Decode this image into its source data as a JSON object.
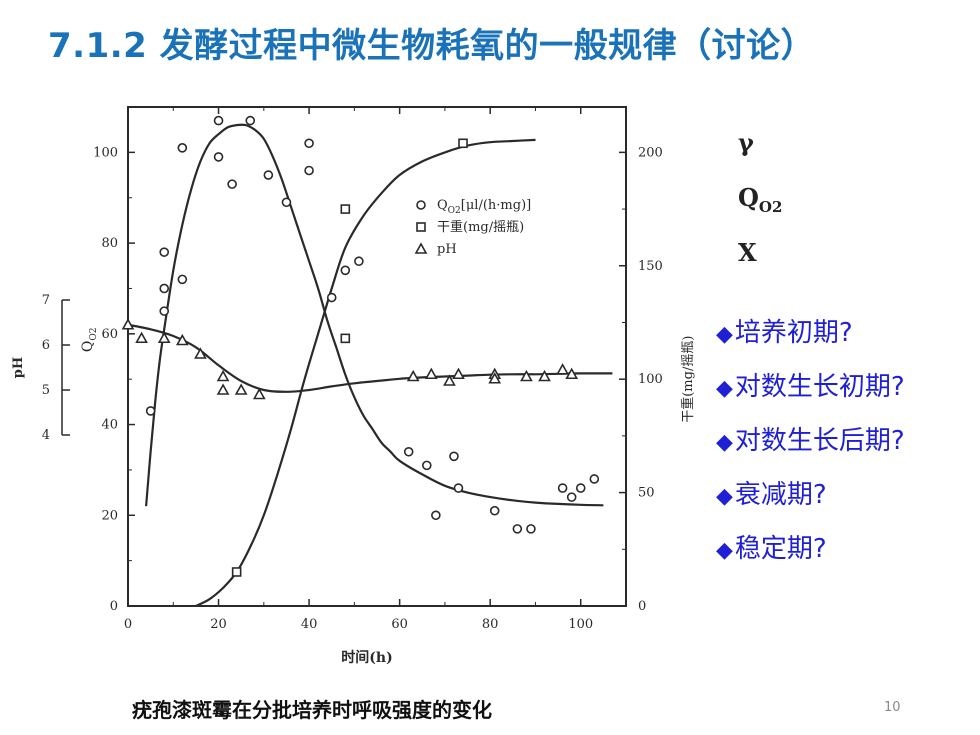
{
  "slide": {
    "title": "7.1.2 发酵过程中微生物耗氧的一般规律（讨论）",
    "caption": "疣孢漆斑霉在分批培养时呼吸强度的变化",
    "page_number": "10",
    "variables": [
      {
        "main": "γ",
        "sub": ""
      },
      {
        "main": "Q",
        "sub": "O2"
      },
      {
        "main": "X",
        "sub": ""
      }
    ],
    "phases": [
      "培养初期?",
      "对数生长初期?",
      "对数生长后期?",
      "衰减期?",
      "稳定期?"
    ],
    "phase_marker": "◆",
    "colors": {
      "title": "#1a72b8",
      "phases": "#1f1fd6",
      "ink": "#2a2a2a"
    }
  },
  "chart_data": {
    "type": "scatter",
    "xlabel": "时间(h)",
    "xlim": [
      0,
      110
    ],
    "x_ticks": [
      0,
      20,
      40,
      60,
      80,
      100
    ],
    "ylabel_left": "Q",
    "ylabel_left_sub": "O2",
    "ylim_left": [
      0,
      110
    ],
    "y_ticks_left": [
      0,
      20,
      40,
      60,
      80,
      100
    ],
    "ylabel_ph": "pH",
    "ylim_ph": [
      4,
      7
    ],
    "y_ticks_ph": [
      4,
      5,
      6,
      7
    ],
    "ylabel_right": "干重(mg/摇瓶)",
    "ylim_right": [
      0,
      220
    ],
    "y_ticks_right": [
      0,
      50,
      100,
      150,
      200
    ],
    "legend": {
      "position": "top-center",
      "entries": [
        {
          "marker": "circle",
          "label": "Q",
          "label_sub": "O2",
          "label_rest": "[μl/(h·mg)]"
        },
        {
          "marker": "square",
          "label": "干重(mg/摇瓶)"
        },
        {
          "marker": "triangle",
          "label": "pH"
        }
      ]
    },
    "grid": false,
    "series": [
      {
        "marker": "circle",
        "axis": "left",
        "points": [
          [
            5,
            43
          ],
          [
            8,
            70
          ],
          [
            8,
            78
          ],
          [
            8,
            65
          ],
          [
            12,
            101
          ],
          [
            12,
            72
          ],
          [
            20,
            107
          ],
          [
            20,
            99
          ],
          [
            23,
            93
          ],
          [
            27,
            107
          ],
          [
            31,
            95
          ],
          [
            35,
            89
          ],
          [
            40,
            102
          ],
          [
            40,
            96
          ],
          [
            45,
            68
          ],
          [
            48,
            74
          ],
          [
            51,
            76
          ],
          [
            62,
            34
          ],
          [
            66,
            31
          ],
          [
            68,
            20
          ],
          [
            72,
            33
          ],
          [
            73,
            26
          ],
          [
            81,
            21
          ],
          [
            86,
            17
          ],
          [
            89,
            17
          ],
          [
            96,
            26
          ],
          [
            98,
            24
          ],
          [
            100,
            26
          ],
          [
            103,
            28
          ]
        ],
        "curve": [
          [
            4,
            22
          ],
          [
            5,
            34
          ],
          [
            6,
            45
          ],
          [
            7,
            54
          ],
          [
            8,
            61
          ],
          [
            10,
            74
          ],
          [
            12,
            84
          ],
          [
            14,
            92
          ],
          [
            16,
            98
          ],
          [
            18,
            102
          ],
          [
            20,
            104
          ],
          [
            22,
            105.5
          ],
          [
            24,
            106
          ],
          [
            26,
            106
          ],
          [
            28,
            105
          ],
          [
            30,
            103
          ],
          [
            32,
            99
          ],
          [
            34,
            94
          ],
          [
            36,
            88
          ],
          [
            38,
            82
          ],
          [
            40,
            76
          ],
          [
            42,
            70
          ],
          [
            44,
            63
          ],
          [
            46,
            57
          ],
          [
            48,
            51
          ],
          [
            50,
            46
          ],
          [
            52,
            42
          ],
          [
            54,
            39
          ],
          [
            56,
            36
          ],
          [
            58,
            34
          ],
          [
            60,
            32
          ],
          [
            65,
            29
          ],
          [
            70,
            26.5
          ],
          [
            75,
            25
          ],
          [
            80,
            24
          ],
          [
            85,
            23.3
          ],
          [
            90,
            22.8
          ],
          [
            95,
            22.5
          ],
          [
            100,
            22.3
          ],
          [
            105,
            22.2
          ]
        ]
      },
      {
        "marker": "square",
        "axis": "right",
        "points": [
          [
            24,
            15
          ],
          [
            48,
            118
          ],
          [
            48,
            175
          ],
          [
            74,
            204
          ]
        ],
        "curve": [
          [
            15,
            0
          ],
          [
            18,
            3
          ],
          [
            21,
            8
          ],
          [
            24,
            15
          ],
          [
            27,
            26
          ],
          [
            30,
            40
          ],
          [
            33,
            58
          ],
          [
            36,
            78
          ],
          [
            39,
            100
          ],
          [
            42,
            120
          ],
          [
            45,
            140
          ],
          [
            48,
            158
          ],
          [
            52,
            172
          ],
          [
            56,
            182
          ],
          [
            60,
            190
          ],
          [
            65,
            196
          ],
          [
            70,
            200
          ],
          [
            75,
            203
          ],
          [
            80,
            204.5
          ],
          [
            85,
            205
          ],
          [
            90,
            205.5
          ]
        ]
      },
      {
        "marker": "triangle",
        "axis": "ph",
        "points": [
          [
            0,
            6.45
          ],
          [
            3,
            6.15
          ],
          [
            8,
            6.15
          ],
          [
            12,
            6.1
          ],
          [
            16,
            5.8
          ],
          [
            21,
            5.3
          ],
          [
            21,
            5.0
          ],
          [
            25,
            5.0
          ],
          [
            29,
            4.9
          ],
          [
            63,
            5.3
          ],
          [
            67,
            5.35
          ],
          [
            71,
            5.2
          ],
          [
            73,
            5.35
          ],
          [
            81,
            5.35
          ],
          [
            81,
            5.25
          ],
          [
            88,
            5.3
          ],
          [
            92,
            5.3
          ],
          [
            96,
            5.45
          ],
          [
            98,
            5.35
          ]
        ],
        "curve": [
          [
            0,
            6.45
          ],
          [
            5,
            6.35
          ],
          [
            10,
            6.2
          ],
          [
            15,
            5.95
          ],
          [
            20,
            5.55
          ],
          [
            25,
            5.2
          ],
          [
            30,
            5.0
          ],
          [
            35,
            4.96
          ],
          [
            40,
            5.0
          ],
          [
            45,
            5.08
          ],
          [
            50,
            5.15
          ],
          [
            55,
            5.2
          ],
          [
            60,
            5.25
          ],
          [
            65,
            5.28
          ],
          [
            70,
            5.3
          ],
          [
            75,
            5.32
          ],
          [
            80,
            5.34
          ],
          [
            85,
            5.35
          ],
          [
            90,
            5.35
          ],
          [
            95,
            5.36
          ],
          [
            100,
            5.37
          ],
          [
            107,
            5.37
          ]
        ]
      }
    ]
  }
}
